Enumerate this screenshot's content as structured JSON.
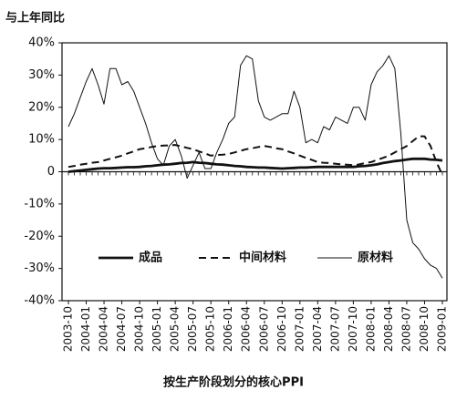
{
  "chart_data": {
    "type": "line",
    "title": "与上年同比",
    "x_label": "按生产阶段划分的核心PPI",
    "categories": [
      "2003-10",
      null,
      null,
      "2004-01",
      null,
      null,
      "2004-04",
      null,
      null,
      "2004-07",
      null,
      null,
      "2004-10",
      null,
      null,
      "2005-01",
      null,
      null,
      "2005-04",
      null,
      null,
      "2005-07",
      null,
      null,
      "2005-10",
      null,
      null,
      "2006-01",
      null,
      null,
      "2006-04",
      null,
      null,
      "2006-07",
      null,
      null,
      "2006-10",
      null,
      null,
      "2007-01",
      null,
      null,
      "2007-04",
      null,
      null,
      "2007-07",
      null,
      null,
      "2007-10",
      null,
      null,
      "2008-01",
      null,
      null,
      "2008-04",
      null,
      null,
      "2008-07",
      null,
      null,
      "2008-10",
      null,
      null,
      "2009-01"
    ],
    "series": [
      {
        "name": "成品",
        "color": "#111111",
        "style": "bold",
        "values": [
          0,
          0.2,
          0.4,
          0.6,
          0.8,
          1,
          1.1,
          1.1,
          1.2,
          1.3,
          1.4,
          1.4,
          1.5,
          1.7,
          1.8,
          2,
          2.2,
          2.3,
          2.5,
          2.7,
          2.8,
          3,
          2.8,
          2.7,
          2.5,
          2.3,
          2.2,
          2,
          1.8,
          1.7,
          1.5,
          1.4,
          1.3,
          1.3,
          1.2,
          1.1,
          1,
          1.1,
          1.2,
          1.3,
          1.3,
          1.4,
          1.5,
          1.5,
          1.5,
          1.5,
          1.5,
          1.5,
          1.5,
          1.7,
          1.8,
          2,
          2.3,
          2.7,
          3,
          3.3,
          3.5,
          3.8,
          4,
          4,
          4,
          3.8,
          3.7,
          3.5
        ]
      },
      {
        "name": "中间材料",
        "color": "#111111",
        "style": "dashed",
        "values": [
          1.5,
          1.8,
          2.2,
          2.5,
          2.8,
          3,
          3.5,
          4,
          4.5,
          5,
          5.7,
          6.3,
          7,
          7.3,
          7.7,
          8,
          8.1,
          8.2,
          8.3,
          7.9,
          7.4,
          7,
          6.3,
          5.7,
          5,
          5.2,
          5.3,
          5.5,
          6,
          6.5,
          7,
          7.3,
          7.7,
          8,
          7.7,
          7.3,
          7,
          6.3,
          5.7,
          5,
          4.3,
          3.7,
          3,
          2.8,
          2.7,
          2.5,
          2.3,
          2.2,
          2,
          2.3,
          2.7,
          3,
          3.7,
          4.3,
          5,
          6,
          7,
          8,
          9.5,
          11,
          11,
          8,
          3,
          -1
        ]
      },
      {
        "name": "原材料",
        "color": "#111111",
        "style": "thin",
        "values": [
          14,
          18,
          23,
          28,
          32,
          27,
          21,
          32,
          32,
          27,
          28,
          25,
          20,
          15,
          9,
          4,
          2,
          8,
          10,
          5,
          -2,
          2,
          6,
          1,
          1,
          6,
          10,
          15,
          17,
          33,
          36,
          35,
          22,
          17,
          16,
          17,
          18,
          18,
          25,
          20,
          9,
          10,
          9,
          14,
          13,
          17,
          16,
          15,
          20,
          20,
          16,
          27,
          31,
          33,
          36,
          32,
          12,
          -15,
          -22,
          -24,
          -27,
          -29,
          -30,
          -33
        ]
      }
    ],
    "ylim": [
      -40,
      40
    ],
    "yticks": [
      {
        "value": -40,
        "label": "-40%"
      },
      {
        "value": -30,
        "label": "-30%"
      },
      {
        "value": -20,
        "label": "-20%"
      },
      {
        "value": -10,
        "label": "-10%"
      },
      0,
      {
        "value": 10,
        "label": "10%"
      },
      {
        "value": 20,
        "label": "20%"
      },
      {
        "value": 30,
        "label": "30%"
      },
      {
        "value": 40,
        "label": "40%"
      }
    ],
    "legend": "lower-center"
  }
}
